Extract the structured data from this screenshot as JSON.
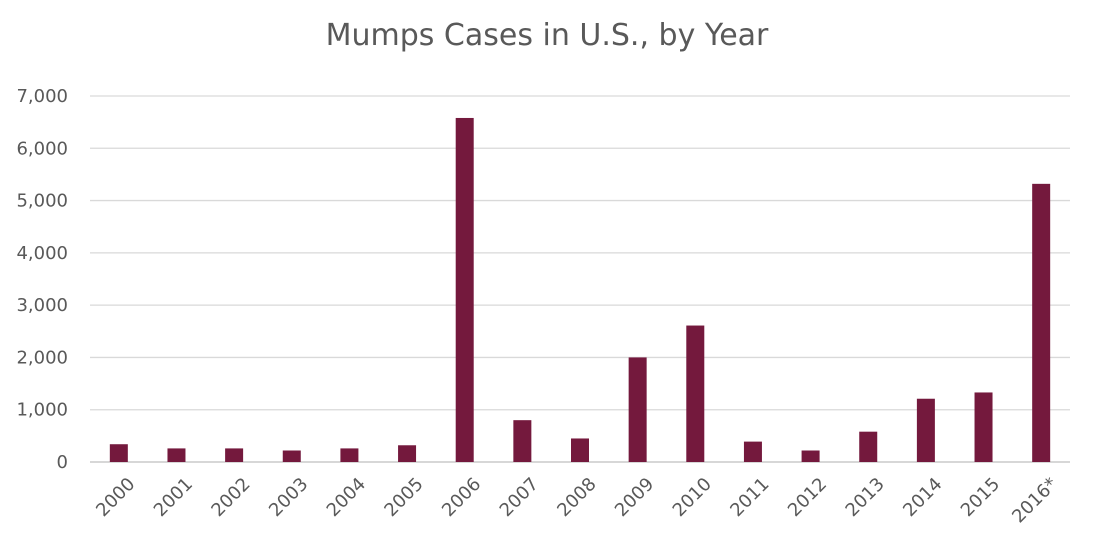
{
  "chart_data": {
    "type": "bar",
    "title": "Mumps Cases in U.S., by Year",
    "xlabel": "",
    "ylabel": "",
    "categories": [
      "2000",
      "2001",
      "2002",
      "2003",
      "2004",
      "2005",
      "2006",
      "2007",
      "2008",
      "2009",
      "2010",
      "2011",
      "2012",
      "2013",
      "2014",
      "2015",
      "2016*"
    ],
    "values": [
      340,
      260,
      260,
      220,
      260,
      320,
      6580,
      800,
      450,
      2000,
      2610,
      390,
      220,
      580,
      1210,
      1330,
      5320
    ],
    "ylim": [
      0,
      7000
    ],
    "yticks": [
      "0",
      "1,000",
      "2,000",
      "3,000",
      "4,000",
      "5,000",
      "6,000",
      "7,000"
    ],
    "ytick_values": [
      0,
      1000,
      2000,
      3000,
      4000,
      5000,
      6000,
      7000
    ],
    "bar_color": "#74193D",
    "grid": true,
    "legend": "none"
  }
}
